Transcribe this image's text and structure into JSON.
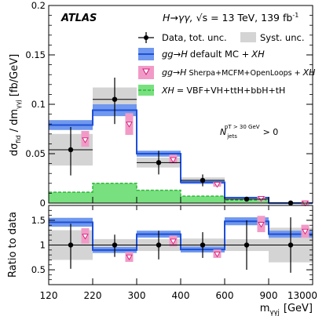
{
  "chart_data": {
    "type": "histogram",
    "experiment": "ATLAS",
    "process": "H→γγ, √s = 13 TeV, 139 fb⁻¹",
    "process_parts": {
      "channel": "H→γγ,",
      "energy": "√s = 13 TeV, 139 fb",
      "lumi_exp": "-1"
    },
    "annotation": "N_jets^(pT > 30 GeV) > 0",
    "annotation_parts": {
      "base": "N",
      "sub": "jets",
      "sup": "pT > 30 GeV",
      "tail": "> 0"
    },
    "bin_edges_labels": [
      "120",
      "220",
      "300",
      "400",
      "600",
      "900",
      "13000"
    ],
    "xlabel": "m_γγj [GeV]",
    "xlabel_parts": {
      "m": "m",
      "sub": "γγj",
      "unit": "[GeV]"
    },
    "top_panel": {
      "ylabel": "dσ_fid / dm_γγj [fb/GeV]",
      "ylabel_parts": {
        "ds": "dσ",
        "fid": "fid",
        "mid": " / dm",
        "sub": "γγj",
        "unit": " [fb/GeV]"
      },
      "ylim": [
        0,
        0.2
      ],
      "yticks": [
        0,
        0.05,
        0.1,
        0.15,
        0.2
      ],
      "yticks_labels": [
        "0",
        "0.05",
        "0.1",
        "0.15",
        "0.2"
      ],
      "data": [
        {
          "y": 0.054,
          "stat_up": 0.023,
          "stat_dn": 0.026,
          "syst": 0.016
        },
        {
          "y": 0.105,
          "stat_up": 0.022,
          "stat_dn": 0.025,
          "syst": 0.012
        },
        {
          "y": 0.041,
          "stat_up": 0.012,
          "stat_dn": 0.012,
          "syst": 0.005
        },
        {
          "y": 0.023,
          "stat_up": 0.006,
          "stat_dn": 0.006,
          "syst": 0.003
        },
        {
          "y": 0.004,
          "stat_up": 0.002,
          "stat_dn": 0.002,
          "syst": 0.0005
        },
        {
          "y": 0.0001,
          "stat_up": 0.0002,
          "stat_dn": 0.0001,
          "syst": 5e-05
        }
      ],
      "default_mc": [
        {
          "y": 0.079,
          "unc": 0.005
        },
        {
          "y": 0.094,
          "unc": 0.006
        },
        {
          "y": 0.05,
          "unc": 0.003
        },
        {
          "y": 0.021,
          "unc": 0.0015
        },
        {
          "y": 0.0055,
          "unc": 0.0007
        },
        {
          "y": 0.00012,
          "unc": 4e-05
        }
      ],
      "sherpa": [
        {
          "y": 0.064,
          "lo": 0.057,
          "hi": 0.073
        },
        {
          "y": 0.08,
          "lo": 0.069,
          "hi": 0.091
        },
        {
          "y": 0.044,
          "lo": 0.04,
          "hi": 0.049
        },
        {
          "y": 0.019,
          "lo": 0.017,
          "hi": 0.021
        },
        {
          "y": 0.0047,
          "lo": 0.004,
          "hi": 0.0055
        },
        {
          "y": 0.0001,
          "lo": 5e-05,
          "hi": 0.00015
        }
      ],
      "xh": [
        0.011,
        0.02,
        0.013,
        0.007,
        0.003,
        0.0001
      ]
    },
    "ratio_panel": {
      "ylabel": "Ratio to data",
      "ylim": [
        0.2,
        1.8
      ],
      "yticks": [
        0.5,
        1,
        1.5
      ],
      "yticks_labels": [
        "0.5",
        "1",
        "1.5"
      ],
      "data": [
        {
          "stat_up": 0.43,
          "stat_dn": 0.48,
          "syst": 0.3
        },
        {
          "stat_up": 0.21,
          "stat_dn": 0.24,
          "syst": 0.12
        },
        {
          "stat_up": 0.29,
          "stat_dn": 0.29,
          "syst": 0.12
        },
        {
          "stat_up": 0.26,
          "stat_dn": 0.26,
          "syst": 0.13
        },
        {
          "stat_up": 0.5,
          "stat_dn": 0.5,
          "syst": 0.12
        },
        {
          "stat_up": 0.56,
          "stat_dn": 0.56,
          "syst": 0.35
        }
      ],
      "default_mc": [
        {
          "y": 1.46,
          "unc": 0.09
        },
        {
          "y": 0.9,
          "unc": 0.06
        },
        {
          "y": 1.22,
          "unc": 0.07
        },
        {
          "y": 0.91,
          "unc": 0.06
        },
        {
          "y": 1.48,
          "unc": 0.08
        },
        {
          "y": 1.22,
          "unc": 0.07
        }
      ],
      "sherpa": [
        {
          "y": 1.18,
          "lo": 1.03,
          "hi": 1.34
        },
        {
          "y": 0.76,
          "lo": 0.66,
          "hi": 0.86
        },
        {
          "y": 1.08,
          "lo": 0.97,
          "hi": 1.19
        },
        {
          "y": 0.82,
          "lo": 0.74,
          "hi": 0.91
        },
        {
          "y": 1.42,
          "lo": 1.26,
          "hi": 1.59
        },
        {
          "y": 1.28,
          "lo": 1.15,
          "hi": 1.41
        }
      ]
    },
    "legend": {
      "placement": "top-right",
      "data": "Data, tot. unc.",
      "syst": "Syst. unc.",
      "default_mc_gg": "gg→H",
      "default_mc_rest": "default MC +",
      "default_mc_xh": "XH",
      "sherpa_gg": "gg→H",
      "sherpa_rest": "Sherpa+MCFM+OpenLoops +",
      "sherpa_xh": "XH",
      "xh_xh": "XH",
      "xh_rest": "= VBF+VH+ttH+bbH+tH"
    },
    "colors": {
      "data": "#000000",
      "syst": "#d4d4d4",
      "default_mc_band": "#6f98ee",
      "default_mc_line": "#1f4fd6",
      "sherpa_band": "#f29ac7",
      "sherpa_marker_edge": "#d01f7a",
      "xh_fill": "#78e07f",
      "xh_line": "#2fb83b"
    }
  }
}
